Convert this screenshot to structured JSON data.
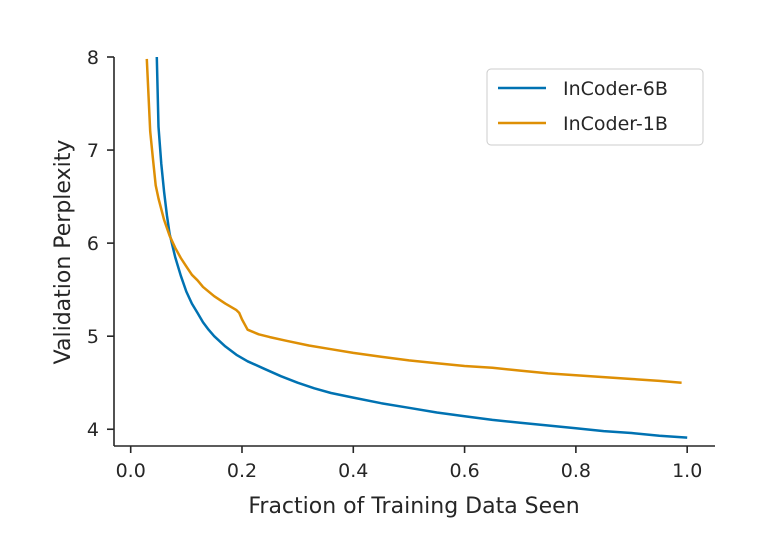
{
  "chart_data": {
    "type": "line",
    "xlabel": "Fraction of Training Data Seen",
    "ylabel": "Validation Perplexity",
    "xlim": [
      -0.03,
      1.05
    ],
    "ylim": [
      3.82,
      8.0
    ],
    "xticks": [
      0.0,
      0.2,
      0.4,
      0.6,
      0.8,
      1.0
    ],
    "xtick_labels": [
      "0.0",
      "0.2",
      "0.4",
      "0.6",
      "0.8",
      "1.0"
    ],
    "yticks": [
      4,
      5,
      6,
      7,
      8
    ],
    "ytick_labels": [
      "4",
      "5",
      "6",
      "7",
      "8"
    ],
    "grid": false,
    "legend_position": "top-right",
    "series": [
      {
        "name": "InCoder-6B",
        "color": "#0072b2",
        "points": [
          [
            0.047,
            8.0
          ],
          [
            0.05,
            7.25
          ],
          [
            0.055,
            6.85
          ],
          [
            0.06,
            6.55
          ],
          [
            0.065,
            6.3
          ],
          [
            0.07,
            6.1
          ],
          [
            0.08,
            5.85
          ],
          [
            0.09,
            5.65
          ],
          [
            0.1,
            5.48
          ],
          [
            0.11,
            5.35
          ],
          [
            0.12,
            5.25
          ],
          [
            0.13,
            5.15
          ],
          [
            0.14,
            5.07
          ],
          [
            0.15,
            5.0
          ],
          [
            0.17,
            4.89
          ],
          [
            0.19,
            4.8
          ],
          [
            0.21,
            4.73
          ],
          [
            0.24,
            4.65
          ],
          [
            0.27,
            4.57
          ],
          [
            0.3,
            4.5
          ],
          [
            0.33,
            4.44
          ],
          [
            0.36,
            4.39
          ],
          [
            0.4,
            4.34
          ],
          [
            0.45,
            4.28
          ],
          [
            0.5,
            4.23
          ],
          [
            0.55,
            4.18
          ],
          [
            0.6,
            4.14
          ],
          [
            0.65,
            4.1
          ],
          [
            0.7,
            4.07
          ],
          [
            0.75,
            4.04
          ],
          [
            0.8,
            4.01
          ],
          [
            0.85,
            3.98
          ],
          [
            0.9,
            3.96
          ],
          [
            0.95,
            3.93
          ],
          [
            1.0,
            3.91
          ]
        ]
      },
      {
        "name": "InCoder-1B",
        "color": "#de8f05",
        "points": [
          [
            0.029,
            7.98
          ],
          [
            0.035,
            7.2
          ],
          [
            0.04,
            6.9
          ],
          [
            0.045,
            6.62
          ],
          [
            0.05,
            6.48
          ],
          [
            0.06,
            6.25
          ],
          [
            0.07,
            6.08
          ],
          [
            0.08,
            5.95
          ],
          [
            0.09,
            5.84
          ],
          [
            0.1,
            5.75
          ],
          [
            0.11,
            5.66
          ],
          [
            0.12,
            5.6
          ],
          [
            0.13,
            5.53
          ],
          [
            0.15,
            5.43
          ],
          [
            0.17,
            5.35
          ],
          [
            0.19,
            5.28
          ],
          [
            0.195,
            5.25
          ],
          [
            0.2,
            5.18
          ],
          [
            0.21,
            5.07
          ],
          [
            0.23,
            5.02
          ],
          [
            0.25,
            4.99
          ],
          [
            0.28,
            4.95
          ],
          [
            0.32,
            4.9
          ],
          [
            0.36,
            4.86
          ],
          [
            0.4,
            4.82
          ],
          [
            0.45,
            4.78
          ],
          [
            0.5,
            4.74
          ],
          [
            0.55,
            4.71
          ],
          [
            0.6,
            4.68
          ],
          [
            0.65,
            4.66
          ],
          [
            0.7,
            4.63
          ],
          [
            0.75,
            4.6
          ],
          [
            0.8,
            4.58
          ],
          [
            0.85,
            4.56
          ],
          [
            0.9,
            4.54
          ],
          [
            0.95,
            4.52
          ],
          [
            0.99,
            4.5
          ]
        ]
      }
    ]
  }
}
